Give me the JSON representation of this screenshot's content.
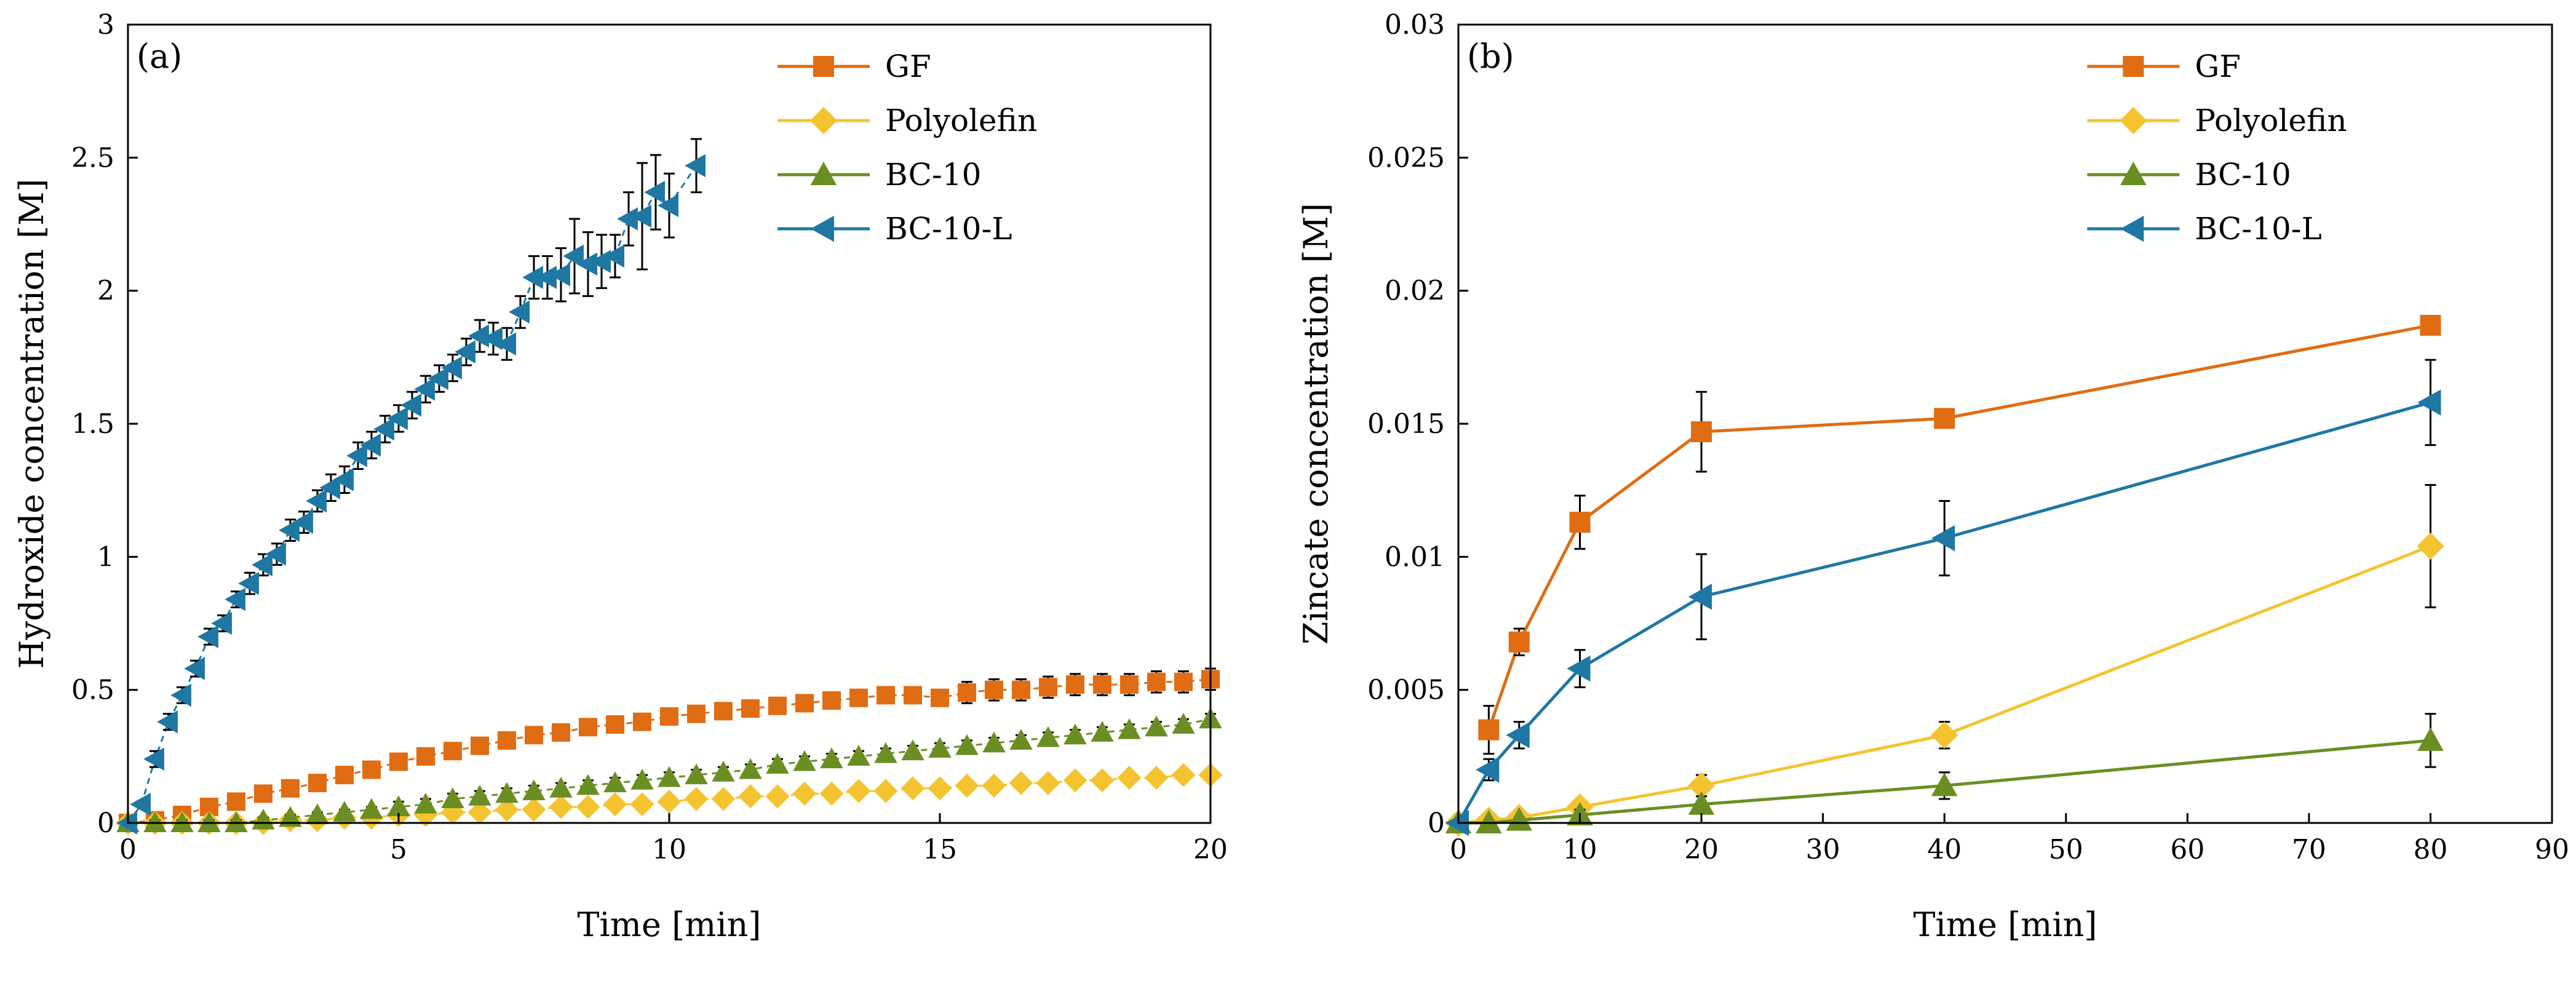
{
  "chart_data": [
    {
      "type": "scatter",
      "panel_label": "(a)",
      "title": "",
      "xlabel": "Time [min]",
      "ylabel": "Hydroxide concentration [M]",
      "xlim": [
        0,
        20
      ],
      "ylim": [
        0,
        3
      ],
      "xticks": [
        "0",
        "5",
        "10",
        "15",
        "20"
      ],
      "xtick_values": [
        0,
        5,
        10,
        15,
        20
      ],
      "yticks": [
        "0",
        "0.5",
        "1",
        "1.5",
        "2",
        "2.5",
        "3"
      ],
      "ytick_values": [
        0,
        0.5,
        1,
        1.5,
        2,
        2.5,
        3
      ],
      "legend_position": "top-right",
      "series": [
        {
          "name": "GF",
          "color": "#E06C13",
          "marker": "square",
          "x": [
            0,
            0.5,
            1,
            1.5,
            2,
            2.5,
            3,
            3.5,
            4,
            4.5,
            5,
            5.5,
            6,
            6.5,
            7,
            7.5,
            8,
            8.5,
            9,
            9.5,
            10,
            10.5,
            11,
            11.5,
            12,
            12.5,
            13,
            13.5,
            14,
            14.5,
            15,
            15.5,
            16,
            16.5,
            17,
            17.5,
            18,
            18.5,
            19,
            19.5,
            20
          ],
          "y": [
            0,
            0.01,
            0.03,
            0.06,
            0.08,
            0.11,
            0.13,
            0.15,
            0.18,
            0.2,
            0.23,
            0.25,
            0.27,
            0.29,
            0.31,
            0.33,
            0.34,
            0.36,
            0.37,
            0.38,
            0.4,
            0.41,
            0.42,
            0.43,
            0.44,
            0.45,
            0.46,
            0.47,
            0.48,
            0.48,
            0.47,
            0.49,
            0.5,
            0.5,
            0.51,
            0.52,
            0.52,
            0.52,
            0.53,
            0.53,
            0.54
          ],
          "err": [
            0,
            0.01,
            0.01,
            0.01,
            0.01,
            0.01,
            0.01,
            0.01,
            0.01,
            0.01,
            0.02,
            0.02,
            0.02,
            0.02,
            0.02,
            0.02,
            0.02,
            0.02,
            0.02,
            0.02,
            0.03,
            0.03,
            0.03,
            0.03,
            0.03,
            0.03,
            0.03,
            0.03,
            0.03,
            0.03,
            0.03,
            0.04,
            0.04,
            0.04,
            0.04,
            0.04,
            0.04,
            0.04,
            0.04,
            0.04,
            0.04
          ]
        },
        {
          "name": "Polyolefin",
          "color": "#F4C430",
          "marker": "diamond",
          "x": [
            0,
            0.5,
            1,
            1.5,
            2,
            2.5,
            3,
            3.5,
            4,
            4.5,
            5,
            5.5,
            6,
            6.5,
            7,
            7.5,
            8,
            8.5,
            9,
            9.5,
            10,
            10.5,
            11,
            11.5,
            12,
            12.5,
            13,
            13.5,
            14,
            14.5,
            15,
            15.5,
            16,
            16.5,
            17,
            17.5,
            18,
            18.5,
            19,
            19.5,
            20
          ],
          "y": [
            0,
            0,
            0,
            0,
            0,
            0,
            0.01,
            0.01,
            0.02,
            0.02,
            0.03,
            0.03,
            0.04,
            0.04,
            0.05,
            0.05,
            0.06,
            0.06,
            0.07,
            0.07,
            0.08,
            0.09,
            0.09,
            0.1,
            0.1,
            0.11,
            0.11,
            0.12,
            0.12,
            0.13,
            0.13,
            0.14,
            0.14,
            0.15,
            0.15,
            0.16,
            0.16,
            0.17,
            0.17,
            0.18,
            0.18
          ],
          "err": [
            0,
            0.01,
            0.01,
            0.01,
            0.01,
            0.01,
            0.01,
            0.01,
            0.01,
            0.01,
            0.01,
            0.02,
            0.02,
            0.02,
            0.02,
            0.02,
            0.02,
            0.02,
            0.02,
            0.02,
            0.02,
            0.02,
            0.02,
            0.02,
            0.02,
            0.02,
            0.02,
            0.02,
            0.02,
            0.02,
            0.02,
            0.02,
            0.02,
            0.02,
            0.02,
            0.02,
            0.02,
            0.02,
            0.02,
            0.02,
            0.02
          ]
        },
        {
          "name": "BC-10",
          "color": "#6B8E23",
          "marker": "triangle-up",
          "x": [
            0,
            0.5,
            1,
            1.5,
            2,
            2.5,
            3,
            3.5,
            4,
            4.5,
            5,
            5.5,
            6,
            6.5,
            7,
            7.5,
            8,
            8.5,
            9,
            9.5,
            10,
            10.5,
            11,
            11.5,
            12,
            12.5,
            13,
            13.5,
            14,
            14.5,
            15,
            15.5,
            16,
            16.5,
            17,
            17.5,
            18,
            18.5,
            19,
            19.5,
            20
          ],
          "y": [
            0,
            0,
            0,
            0,
            0,
            0.01,
            0.02,
            0.03,
            0.04,
            0.05,
            0.06,
            0.07,
            0.09,
            0.1,
            0.11,
            0.12,
            0.13,
            0.14,
            0.15,
            0.16,
            0.17,
            0.18,
            0.19,
            0.2,
            0.22,
            0.23,
            0.24,
            0.25,
            0.26,
            0.27,
            0.28,
            0.29,
            0.3,
            0.31,
            0.32,
            0.33,
            0.34,
            0.35,
            0.36,
            0.37,
            0.39
          ],
          "err": [
            0,
            0.01,
            0.01,
            0.01,
            0.01,
            0.01,
            0.01,
            0.01,
            0.01,
            0.01,
            0.02,
            0.02,
            0.02,
            0.02,
            0.02,
            0.02,
            0.02,
            0.02,
            0.02,
            0.02,
            0.02,
            0.02,
            0.02,
            0.02,
            0.02,
            0.02,
            0.02,
            0.02,
            0.02,
            0.02,
            0.02,
            0.02,
            0.02,
            0.02,
            0.02,
            0.02,
            0.02,
            0.02,
            0.02,
            0.02,
            0.02
          ]
        },
        {
          "name": "BC-10-L",
          "color": "#1F77A4",
          "marker": "triangle-left",
          "x": [
            0,
            0.25,
            0.5,
            0.75,
            1,
            1.25,
            1.5,
            1.75,
            2,
            2.25,
            2.5,
            2.75,
            3,
            3.25,
            3.5,
            3.75,
            4,
            4.25,
            4.5,
            4.75,
            5,
            5.25,
            5.5,
            5.75,
            6,
            6.25,
            6.5,
            6.75,
            7,
            7.25,
            7.5,
            7.75,
            8,
            8.25,
            8.5,
            8.75,
            9,
            9.25,
            9.5,
            9.75,
            10,
            10.5
          ],
          "y": [
            0,
            0.07,
            0.24,
            0.38,
            0.48,
            0.58,
            0.7,
            0.75,
            0.84,
            0.9,
            0.97,
            1.01,
            1.1,
            1.13,
            1.21,
            1.26,
            1.29,
            1.38,
            1.42,
            1.48,
            1.52,
            1.57,
            1.63,
            1.67,
            1.71,
            1.77,
            1.83,
            1.82,
            1.8,
            1.92,
            2.05,
            2.05,
            2.06,
            2.13,
            2.1,
            2.11,
            2.13,
            2.27,
            2.28,
            2.37,
            2.32,
            2.47
          ],
          "err": [
            0,
            0.01,
            0.03,
            0.03,
            0.03,
            0.03,
            0.03,
            0.03,
            0.03,
            0.04,
            0.04,
            0.04,
            0.04,
            0.04,
            0.04,
            0.05,
            0.05,
            0.05,
            0.05,
            0.05,
            0.05,
            0.05,
            0.05,
            0.05,
            0.05,
            0.05,
            0.06,
            0.06,
            0.06,
            0.06,
            0.08,
            0.08,
            0.1,
            0.14,
            0.12,
            0.1,
            0.08,
            0.1,
            0.2,
            0.14,
            0.12,
            0.1
          ]
        }
      ]
    },
    {
      "type": "line",
      "panel_label": "(b)",
      "title": "",
      "xlabel": "Time [min]",
      "ylabel": "Zincate concentration [M]",
      "xlim": [
        0,
        90
      ],
      "ylim": [
        0,
        0.03
      ],
      "xticks": [
        "0",
        "10",
        "20",
        "30",
        "40",
        "50",
        "60",
        "70",
        "80",
        "90"
      ],
      "xtick_values": [
        0,
        10,
        20,
        30,
        40,
        50,
        60,
        70,
        80,
        90
      ],
      "yticks": [
        "0",
        "0.005",
        "0.01",
        "0.015",
        "0.02",
        "0.025",
        "0.03"
      ],
      "ytick_values": [
        0,
        0.005,
        0.01,
        0.015,
        0.02,
        0.025,
        0.03
      ],
      "legend_position": "top-right",
      "series": [
        {
          "name": "GF",
          "color": "#E06C13",
          "marker": "square",
          "x": [
            2.5,
            5,
            10,
            20,
            40,
            80
          ],
          "y": [
            0.0035,
            0.0068,
            0.0113,
            0.0147,
            0.0152,
            0.0187
          ],
          "err": [
            0.0009,
            0.0005,
            0.001,
            0.0015,
            0.0002,
            0.0001
          ]
        },
        {
          "name": "Polyolefin",
          "color": "#F4C430",
          "marker": "diamond",
          "x": [
            0,
            2.5,
            5,
            10,
            20,
            40,
            80
          ],
          "y": [
            0,
            0.0001,
            0.0002,
            0.0006,
            0.0014,
            0.0033,
            0.0104
          ],
          "err": [
            0,
            0.0001,
            0.0002,
            0.0002,
            0.0004,
            0.0005,
            0.0023
          ]
        },
        {
          "name": "BC-10",
          "color": "#6B8E23",
          "marker": "triangle-up",
          "x": [
            0,
            2.5,
            5,
            10,
            20,
            40,
            80
          ],
          "y": [
            0,
            0,
            0.0001,
            0.0003,
            0.0007,
            0.0014,
            0.0031
          ],
          "err": [
            0,
            0,
            0.0001,
            0.0002,
            0.0003,
            0.0005,
            0.001
          ]
        },
        {
          "name": "BC-10-L",
          "color": "#1F77A4",
          "marker": "triangle-left",
          "x": [
            0,
            2.5,
            5,
            10,
            20,
            40,
            80
          ],
          "y": [
            0,
            0.002,
            0.0033,
            0.0058,
            0.0085,
            0.0107,
            0.0158
          ],
          "err": [
            0,
            0.0004,
            0.0005,
            0.0007,
            0.0016,
            0.0014,
            0.0016
          ]
        }
      ]
    }
  ]
}
